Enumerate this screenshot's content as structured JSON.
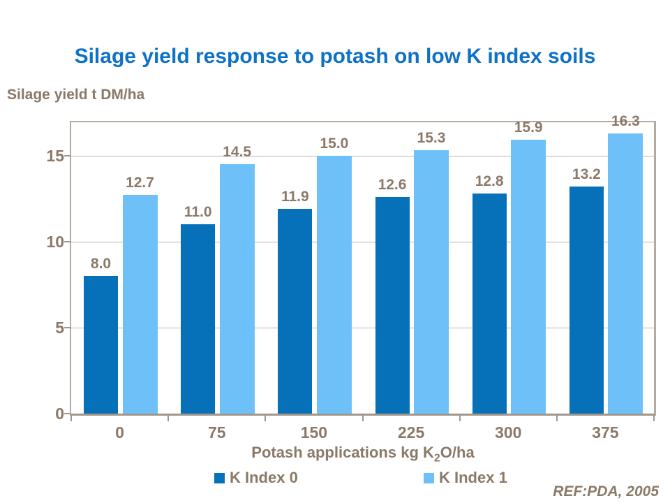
{
  "slide": {
    "title": "Silage yield response to potash on low K index soils",
    "footer": "REF:PDA, 2005"
  },
  "chart_data": {
    "type": "bar",
    "title": "Silage yield response to potash on low K index soils",
    "ylabel": "Silage yield t DM/ha",
    "xlabel": "Potash applications kg K2O/ha",
    "xlabel_parts": {
      "prefix": "Potash applications kg K",
      "subscript": "2",
      "suffix": "O/ha"
    },
    "categories": [
      "0",
      "75",
      "150",
      "225",
      "300",
      "375"
    ],
    "series": [
      {
        "name": "K Index 0",
        "color": "#0671b8",
        "values": [
          8.0,
          11.0,
          11.9,
          12.6,
          12.8,
          13.2
        ]
      },
      {
        "name": "K Index 1",
        "color": "#6ec0f8",
        "values": [
          12.7,
          14.5,
          15.0,
          15.3,
          15.9,
          16.3
        ]
      }
    ],
    "yticks": [
      0,
      5,
      10,
      15
    ],
    "ylim": [
      0,
      16.93
    ],
    "grid": "horizontal",
    "legend_position": "bottom",
    "value_labels": true,
    "value_label_format": "one-decimal"
  },
  "colors": {
    "title_blue": "#0d72c6",
    "axis_text_brown": "#8a7968",
    "plot_border": "#b4aa9e",
    "baseline": "#a1968a",
    "gridline": "#beb5ab",
    "series_dark_blue": "#0671b8",
    "series_light_blue": "#6ec0f8",
    "background": "#ffffff"
  }
}
